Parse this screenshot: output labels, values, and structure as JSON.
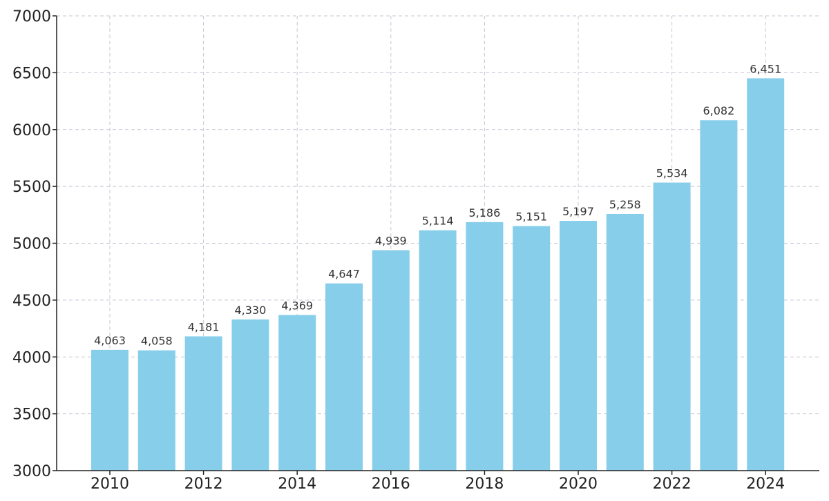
{
  "chart_data": {
    "type": "bar",
    "categories": [
      "2010",
      "2011",
      "2012",
      "2013",
      "2014",
      "2015",
      "2016",
      "2017",
      "2018",
      "2019",
      "2020",
      "2021",
      "2022",
      "2023",
      "2024"
    ],
    "values": [
      4063,
      4058,
      4181,
      4330,
      4369,
      4647,
      4939,
      5114,
      5186,
      5151,
      5197,
      5258,
      5534,
      6082,
      6451
    ],
    "data_labels": [
      "4,063",
      "4,058",
      "4,181",
      "4,330",
      "4,369",
      "4,647",
      "4,939",
      "5,114",
      "5,186",
      "5,151",
      "5,197",
      "5,258",
      "5,534",
      "6,082",
      "6,451"
    ],
    "x_tick_labels": [
      "2010",
      "2012",
      "2014",
      "2016",
      "2018",
      "2020",
      "2022",
      "2024"
    ],
    "y_ticks": [
      3000,
      3500,
      4000,
      4500,
      5000,
      5500,
      6000,
      6500,
      7000
    ],
    "y_tick_labels": [
      "3000",
      "3500",
      "4000",
      "4500",
      "5000",
      "5500",
      "6000",
      "6500",
      "7000"
    ],
    "ylim": [
      3000,
      7000
    ],
    "title": "",
    "xlabel": "",
    "ylabel": "",
    "grid": true,
    "bar_color": "#87ceeb"
  }
}
